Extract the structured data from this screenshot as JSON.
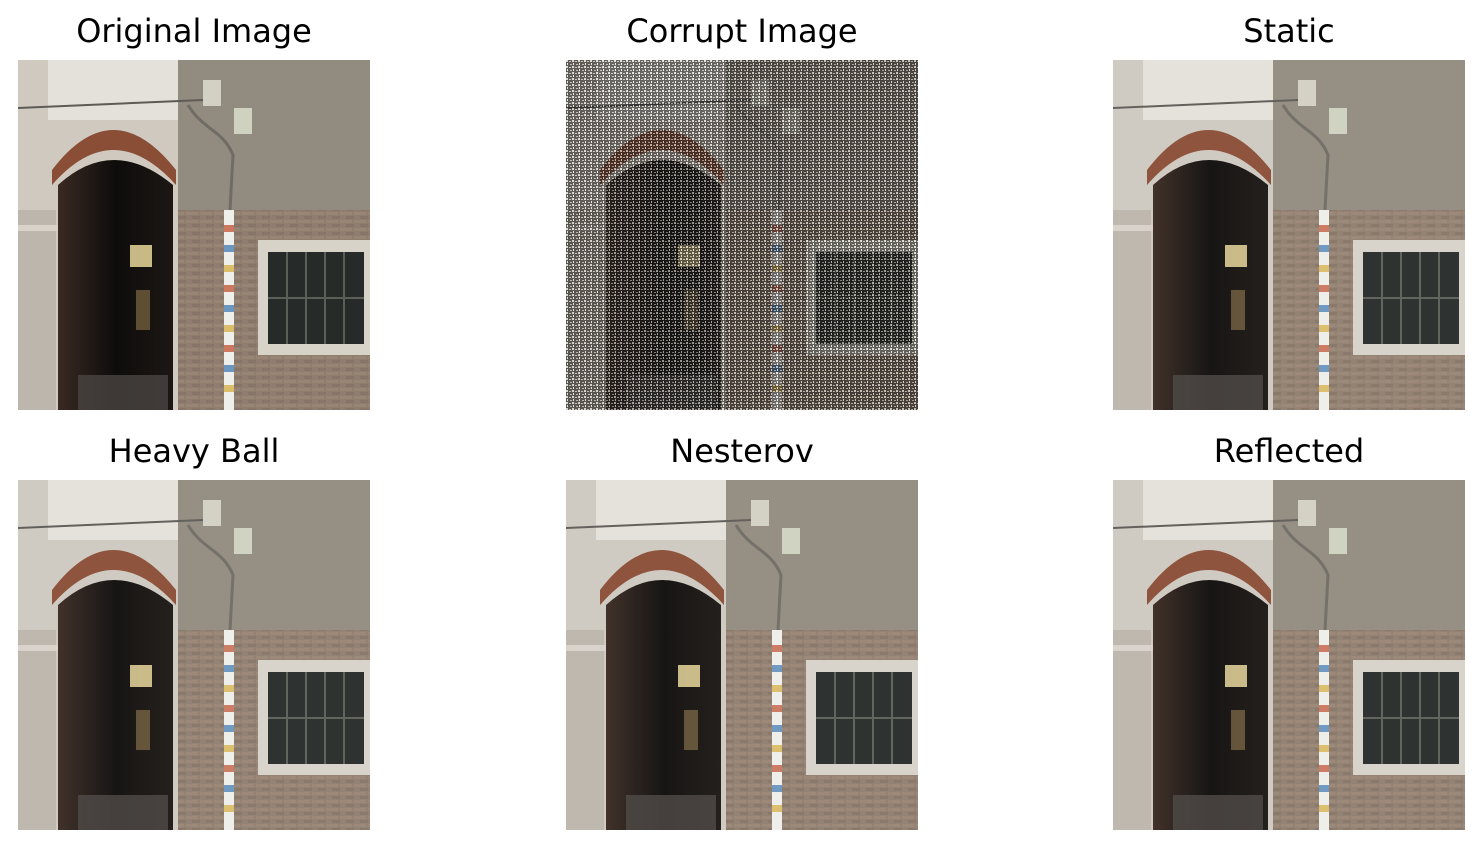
{
  "figure": {
    "panels": [
      {
        "title": "Original Image",
        "variant": "original"
      },
      {
        "title": "Corrupt Image",
        "variant": "corrupt"
      },
      {
        "title": "Static",
        "variant": "restored"
      },
      {
        "title": "Heavy Ball",
        "variant": "restored"
      },
      {
        "title": "Nesterov",
        "variant": "restored"
      },
      {
        "title": "Reflected",
        "variant": "restored"
      }
    ]
  }
}
